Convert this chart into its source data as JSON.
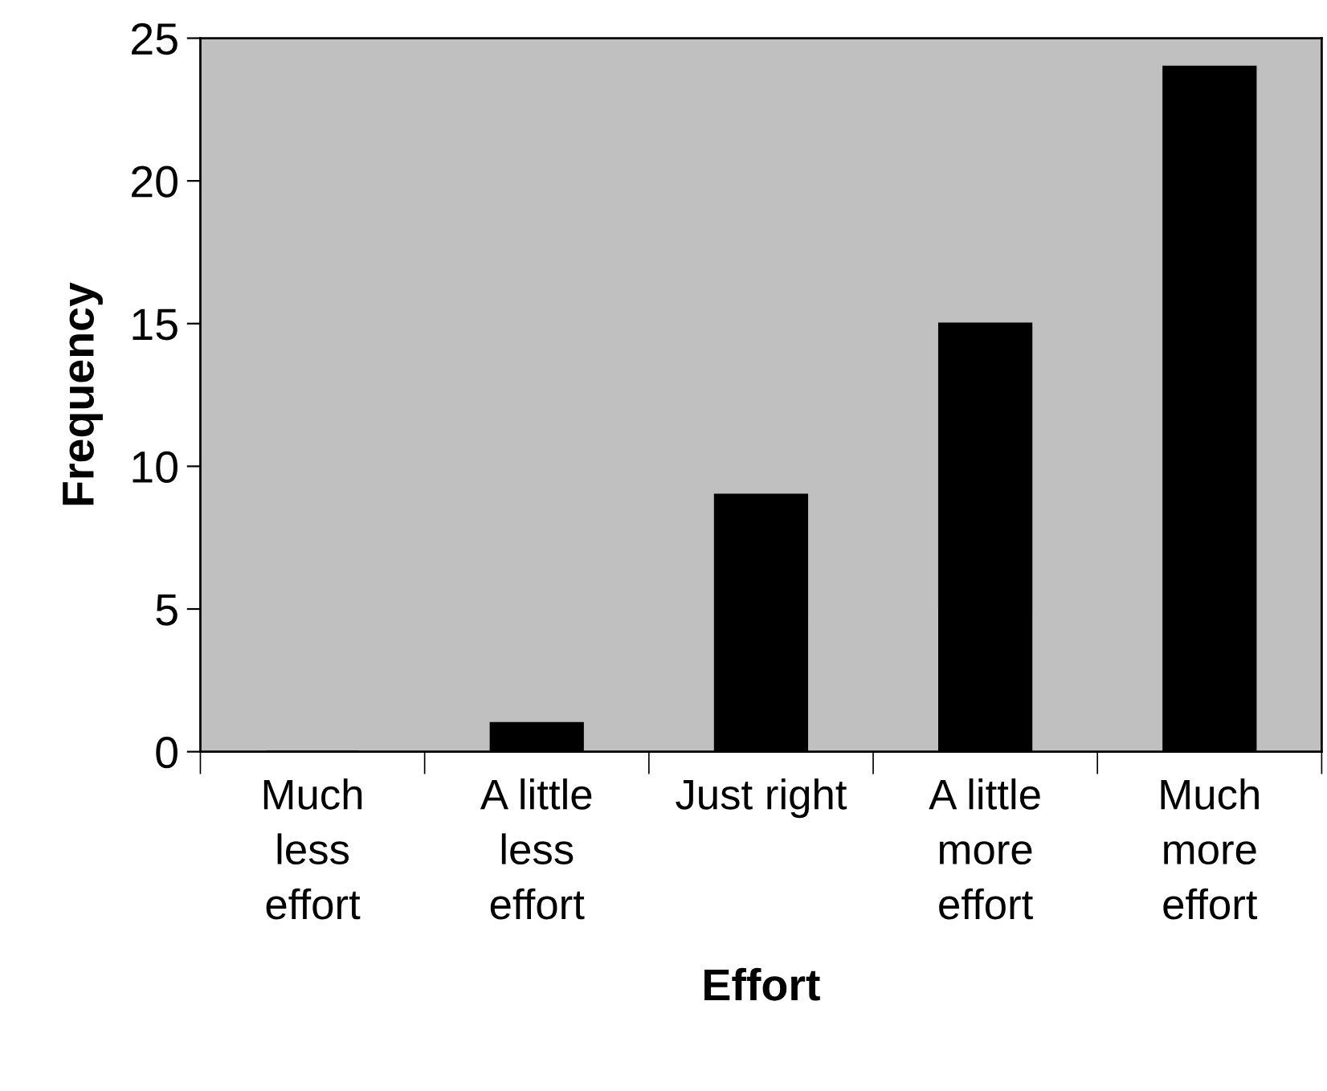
{
  "chart_data": {
    "type": "bar",
    "xlabel": "Effort",
    "ylabel": "Frequency",
    "categories": [
      "Much\nless\neffort",
      "A little\nless\neffort",
      "Just right",
      "A little\nmore\neffort",
      "Much\nmore\neffort"
    ],
    "values": [
      0,
      1,
      9,
      15,
      24
    ],
    "color": "#000000",
    "ylim": [
      0,
      25
    ],
    "yticks": [
      0,
      5,
      10,
      15,
      20,
      25
    ],
    "grid": false,
    "legend": false
  }
}
